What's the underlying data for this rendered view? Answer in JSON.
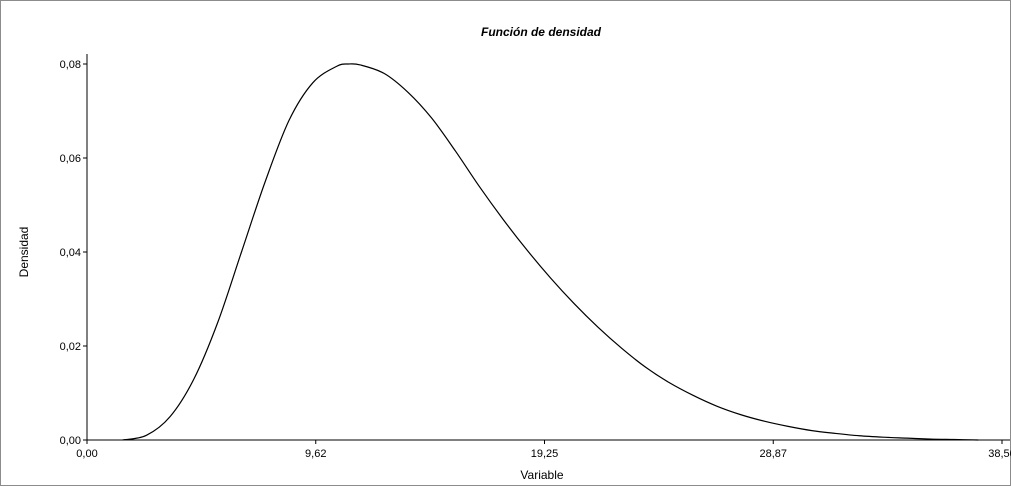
{
  "chart_data": {
    "type": "line",
    "title": "Función de densidad",
    "xlabel": "Variable",
    "ylabel": "Densidad",
    "xlim": [
      0,
      38.5
    ],
    "ylim": [
      0,
      0.08
    ],
    "x_ticks": [
      "0,00",
      "9,62",
      "19,25",
      "28,87",
      "38,50"
    ],
    "y_ticks": [
      "0,00",
      "0,02",
      "0,04",
      "0,06",
      "0,08"
    ],
    "grid": false,
    "legend": "none",
    "line_color": "#000000",
    "series": [
      {
        "x": [
          1.5,
          2.5,
          3.5,
          4.5,
          5.5,
          6.5,
          7.5,
          8.5,
          9.5,
          10.5,
          11.0,
          11.5,
          12.5,
          13.5,
          14.5,
          15.5,
          16.5,
          17.5,
          18.5,
          19.5,
          20.5,
          21.5,
          22.5,
          23.5,
          24.5,
          25.5,
          26.5,
          27.5,
          28.5,
          29.5,
          30.5,
          31.5,
          32.5,
          33.5,
          34.5,
          35.5,
          36.5,
          37.5
        ],
        "values": [
          0.0,
          0.001,
          0.005,
          0.013,
          0.025,
          0.04,
          0.055,
          0.068,
          0.076,
          0.0795,
          0.08,
          0.0798,
          0.078,
          0.074,
          0.0685,
          0.0615,
          0.054,
          0.047,
          0.0405,
          0.0345,
          0.029,
          0.024,
          0.0195,
          0.0155,
          0.0122,
          0.0095,
          0.0072,
          0.0054,
          0.004,
          0.0029,
          0.002,
          0.0014,
          0.0009,
          0.0006,
          0.0004,
          0.0002,
          0.0001,
          0.0
        ]
      }
    ]
  }
}
